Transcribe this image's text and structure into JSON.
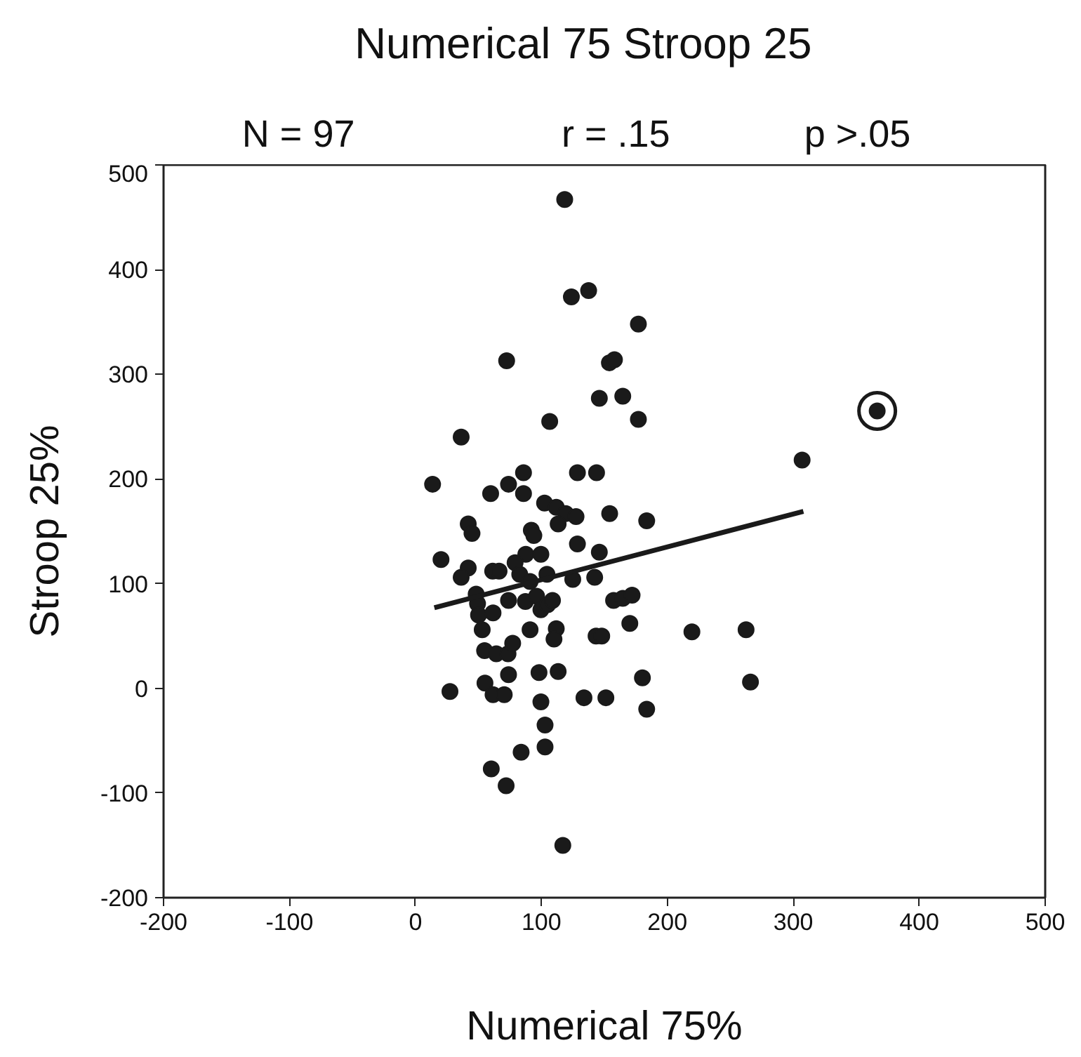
{
  "chart_data": {
    "type": "scatter",
    "title": "Numerical 75 Stroop 25",
    "xlabel": "Numerical 75%",
    "ylabel": "Stroop 25%",
    "annotations": [
      "N = 97",
      "r = .15",
      "p >.05"
    ],
    "xlim": [
      -200,
      500
    ],
    "ylim": [
      -200,
      500
    ],
    "xticks": [
      -200,
      -100,
      0,
      100,
      200,
      300,
      400,
      500
    ],
    "yticks": [
      -200,
      -100,
      0,
      100,
      200,
      300,
      400,
      500
    ],
    "grid": false,
    "series": [
      {
        "color": "#1a1a1a",
        "marker": "circle",
        "x": [
          118.5,
          123.8,
          137.5,
          177,
          72.4,
          154,
          158,
          146,
          164.6,
          177,
          106.6,
          36.3,
          13.6,
          85.8,
          128.6,
          143.8,
          59.7,
          73.9,
          85.8,
          102.5,
          111.8,
          119.3,
          127.5,
          113.3,
          154.2,
          183.6,
          41.9,
          44.9,
          92,
          94,
          128.6,
          146,
          20.3,
          87.6,
          99.6,
          41.9,
          36.3,
          61.3,
          66.4,
          79.1,
          82.8,
          91,
          104.4,
          124.9,
          142.3,
          48.2,
          49.3,
          50.1,
          61.6,
          73.9,
          87.3,
          96.2,
          99.6,
          105,
          108.8,
          157.3,
          164.6,
          172,
          170.2,
          53,
          91,
          111.8,
          110,
          143.4,
          147.9,
          219.5,
          262.5,
          54.9,
          64.2,
          73.5,
          77.2,
          73.9,
          98.1,
          113.3,
          180.2,
          27.4,
          55.2,
          61.6,
          70.5,
          99.6,
          133.8,
          151.2,
          183.6,
          102.9,
          83.9,
          102.9,
          60.2,
          72,
          117,
          366.6,
          307,
          266
        ],
        "values": [
          467,
          374,
          380,
          348,
          313,
          311,
          314,
          277,
          279,
          257,
          255,
          240,
          195,
          206,
          206,
          206,
          186,
          195,
          186,
          177,
          173,
          167,
          164,
          157,
          167,
          160,
          157,
          148,
          151,
          146,
          138,
          130,
          123,
          128,
          128,
          115,
          106,
          112,
          112,
          120,
          109,
          102,
          109,
          104,
          106,
          90,
          81,
          70,
          72,
          84,
          83,
          88,
          75,
          80,
          84,
          84,
          86,
          89,
          62,
          56,
          56,
          57,
          47,
          50,
          50,
          54,
          56,
          36,
          33,
          33,
          43,
          13,
          15,
          16,
          10,
          -3,
          5,
          -6,
          -6,
          -13,
          -9,
          -9,
          -20,
          -35,
          -61,
          -56,
          -77,
          -93,
          -150,
          265,
          218,
          6
        ]
      },
      {
        "type": "line",
        "color": "#1a1a1a",
        "x": [
          15,
          308
        ],
        "values": [
          77,
          169
        ]
      }
    ]
  }
}
